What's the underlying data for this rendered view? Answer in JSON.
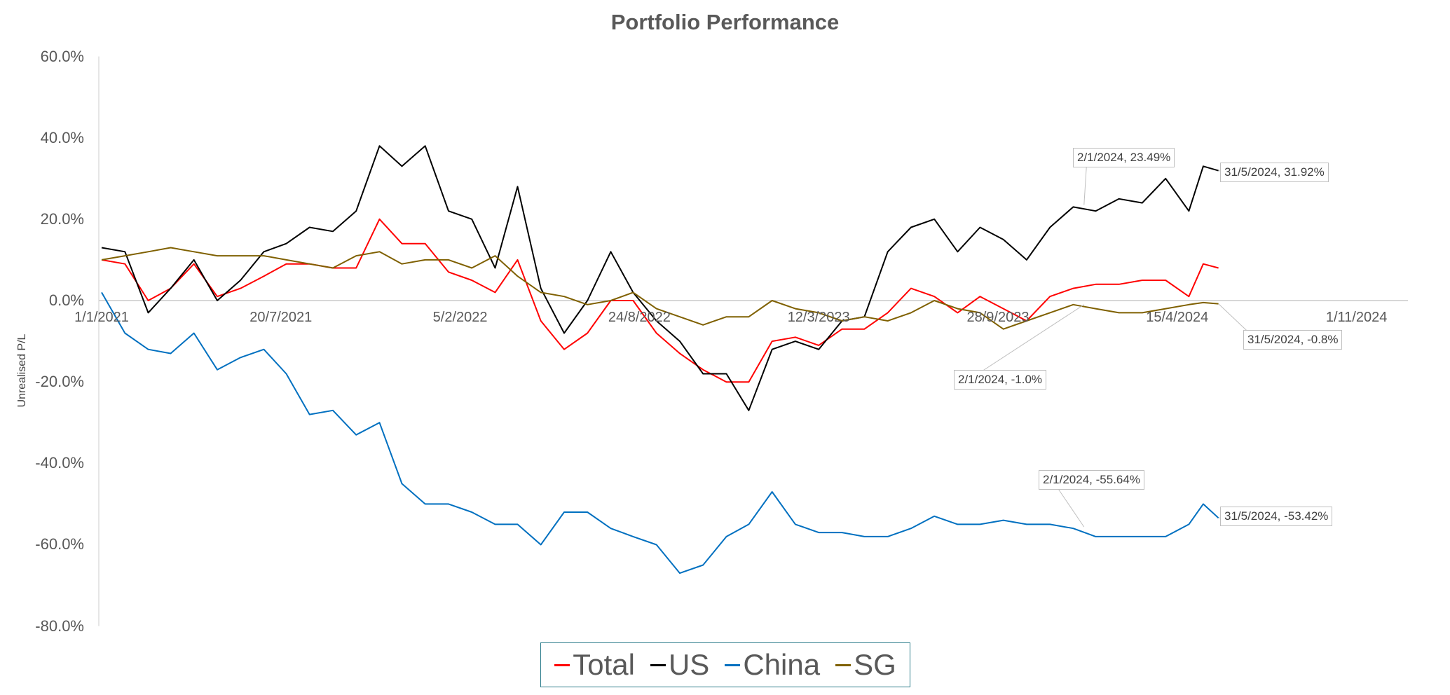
{
  "chart_data": {
    "type": "line",
    "title": "Portfolio Performance",
    "xlabel": "",
    "ylabel": "Unrealised P/L",
    "ylim": [
      -80,
      60
    ],
    "xlim": [
      "2021-01-01",
      "2024-12-30"
    ],
    "y_ticks": [
      "60.0%",
      "40.0%",
      "20.0%",
      "0.0%",
      "-20.0%",
      "-40.0%",
      "-60.0%",
      "-80.0%"
    ],
    "y_tick_values": [
      60,
      40,
      20,
      0,
      -20,
      -40,
      -60,
      -80
    ],
    "x_ticks": [
      "1/1/2021",
      "20/7/2021",
      "5/2/2022",
      "24/8/2022",
      "12/3/2023",
      "28/9/2023",
      "15/4/2024",
      "1/11/2024"
    ],
    "x_tick_dates": [
      "2021-01-01",
      "2021-07-20",
      "2022-02-05",
      "2022-08-24",
      "2023-03-12",
      "2023-09-28",
      "2024-04-15",
      "2024-11-01"
    ],
    "grid": false,
    "legend_position": "bottom",
    "x": [
      "2021-01-01",
      "2021-01-27",
      "2021-02-22",
      "2021-03-19",
      "2021-04-14",
      "2021-05-10",
      "2021-06-05",
      "2021-07-01",
      "2021-07-26",
      "2021-08-21",
      "2021-09-16",
      "2021-10-12",
      "2021-11-07",
      "2021-12-02",
      "2021-12-28",
      "2022-01-23",
      "2022-02-18",
      "2022-03-16",
      "2022-04-10",
      "2022-05-06",
      "2022-06-01",
      "2022-06-27",
      "2022-07-23",
      "2022-08-17",
      "2022-09-12",
      "2022-10-08",
      "2022-11-03",
      "2022-11-29",
      "2022-12-24",
      "2023-01-19",
      "2023-02-14",
      "2023-03-12",
      "2023-04-07",
      "2023-05-02",
      "2023-05-28",
      "2023-06-23",
      "2023-07-19",
      "2023-08-14",
      "2023-09-08",
      "2023-10-04",
      "2023-10-30",
      "2023-11-25",
      "2023-12-21",
      "2024-01-15",
      "2024-02-10",
      "2024-03-07",
      "2024-04-02",
      "2024-04-28",
      "2024-05-14",
      "2024-05-31"
    ],
    "series": [
      {
        "name": "Total",
        "color": "#FF0000",
        "values": [
          10,
          9,
          0,
          3,
          9,
          1,
          3,
          6,
          9,
          9,
          8,
          8,
          20,
          14,
          14,
          7,
          5,
          2,
          10,
          -5,
          -12,
          -8,
          0,
          0,
          -8,
          -13,
          -17,
          -20,
          -20,
          -10,
          -9,
          -11,
          -7,
          -7,
          -3,
          3,
          1,
          -3,
          1,
          -2,
          -5,
          1,
          3,
          4,
          4,
          5,
          5,
          1,
          9,
          8
        ]
      },
      {
        "name": "US",
        "color": "#000000",
        "values": [
          13,
          12,
          -3,
          3,
          10,
          0,
          5,
          12,
          14,
          18,
          17,
          22,
          38,
          33,
          38,
          22,
          20,
          8,
          28,
          3,
          -8,
          0,
          12,
          2,
          -5,
          -10,
          -18,
          -18,
          -27,
          -12,
          -10,
          -12,
          -5,
          -4,
          12,
          18,
          20,
          12,
          18,
          15,
          10,
          18,
          23,
          22,
          25,
          24,
          30,
          22,
          33,
          31.92
        ]
      },
      {
        "name": "China",
        "color": "#0070C0",
        "values": [
          2,
          -8,
          -12,
          -13,
          -8,
          -17,
          -14,
          -12,
          -18,
          -28,
          -27,
          -33,
          -30,
          -45,
          -50,
          -50,
          -52,
          -55,
          -55,
          -60,
          -52,
          -52,
          -56,
          -58,
          -60,
          -67,
          -65,
          -58,
          -55,
          -47,
          -55,
          -57,
          -57,
          -58,
          -58,
          -56,
          -53,
          -55,
          -55,
          -54,
          -55,
          -55,
          -56,
          -58,
          -58,
          -58,
          -58,
          -55,
          -50,
          -53.42
        ]
      },
      {
        "name": "SG",
        "color": "#7F6000",
        "values": [
          10,
          11,
          12,
          13,
          12,
          11,
          11,
          11,
          10,
          9,
          8,
          11,
          12,
          9,
          10,
          10,
          8,
          11,
          6,
          2,
          1,
          -1,
          0,
          2,
          -2,
          -4,
          -6,
          -4,
          -4,
          0,
          -2,
          -3,
          -5,
          -4,
          -5,
          -3,
          0,
          -2,
          -3,
          -7,
          -5,
          -3,
          -1,
          -2,
          -3,
          -3,
          -2,
          -1,
          -0.5,
          -0.8
        ]
      }
    ],
    "annotations": [
      {
        "label": "2/1/2024, 23.49%",
        "series": "US",
        "date": "2024-01-02",
        "value": 23.49
      },
      {
        "label": "31/5/2024, 31.92%",
        "series": "US",
        "date": "2024-05-31",
        "value": 31.92
      },
      {
        "label": "31/5/2024, -0.8%",
        "series": "SG",
        "date": "2024-05-31",
        "value": -0.8
      },
      {
        "label": "2/1/2024, -1.0%",
        "series": "SG",
        "date": "2024-01-02",
        "value": -1.0
      },
      {
        "label": "2/1/2024, -55.64%",
        "series": "China",
        "date": "2024-01-02",
        "value": -55.64
      },
      {
        "label": "31/5/2024, -53.42%",
        "series": "China",
        "date": "2024-05-31",
        "value": -53.42
      }
    ]
  }
}
